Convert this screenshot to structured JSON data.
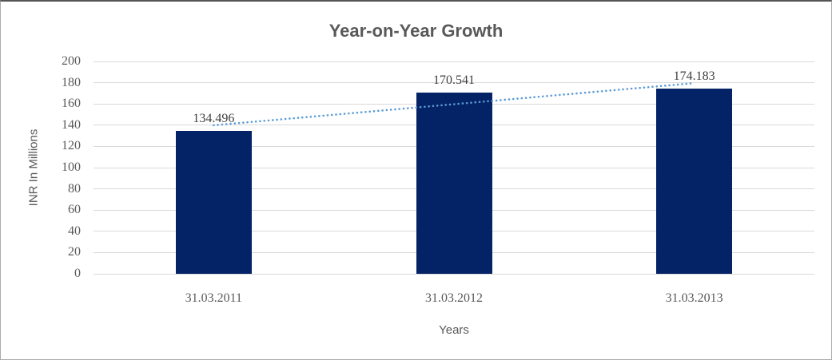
{
  "chart_data": {
    "type": "bar",
    "title": "Year-on-Year Growth",
    "xlabel": "Years",
    "ylabel": "INR In Millions",
    "categories": [
      "31.03.2011",
      "31.03.2012",
      "31.03.2013"
    ],
    "values": [
      134.496,
      170.541,
      174.183
    ],
    "data_labels": [
      "134.496",
      "170.541",
      "174.183"
    ],
    "ylim": [
      0,
      200
    ],
    "ytick_step": 20,
    "yticks": [
      200,
      180,
      160,
      140,
      120,
      100,
      80,
      60,
      40,
      20,
      0
    ],
    "grid": true,
    "legend": "none",
    "trendline": {
      "type": "linear",
      "style": "dotted"
    },
    "colors": {
      "bar": "#042366",
      "trendline": "#5B9BD5",
      "gridline": "#D9D9D9",
      "title_text": "#595959",
      "axis_text": "#595959",
      "data_label_text": "#3f3f3f"
    }
  }
}
